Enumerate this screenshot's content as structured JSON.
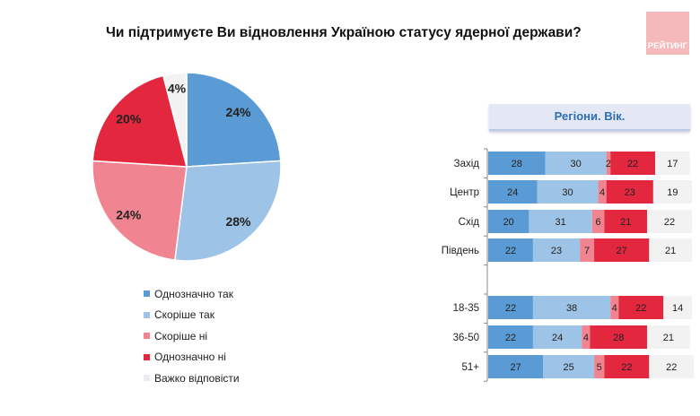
{
  "title": "Чи підтримуєте Ви відновлення Україною статусу ядерної держави?",
  "logo": "РЕЙТИНГ",
  "panel_title": "Регіони. Вік.",
  "chart_data": [
    {
      "type": "pie",
      "categories": [
        "Однозначно так",
        "Скоріше так",
        "Скоріше ні",
        "Однозначно ні",
        "Важко відповісти"
      ],
      "values": [
        24,
        28,
        24,
        20,
        4
      ],
      "labels": [
        "24%",
        "28%",
        "24%",
        "20%",
        "4%"
      ],
      "colors": [
        "#5b9bd5",
        "#9dc3e6",
        "#f08591",
        "#e2273f",
        "#f2f2f2"
      ],
      "legend": "bottom"
    },
    {
      "type": "bar",
      "orientation": "horizontal-stacked",
      "categories": [
        "Захід",
        "Центр",
        "Схід",
        "Південь",
        "",
        "18-35",
        "36-50",
        "51+"
      ],
      "series": [
        {
          "name": "Однозначно так",
          "values": [
            28,
            24,
            20,
            22,
            null,
            22,
            22,
            27
          ]
        },
        {
          "name": "Скоріше так",
          "values": [
            30,
            30,
            31,
            23,
            null,
            38,
            24,
            25
          ]
        },
        {
          "name": "Важко відповісти",
          "values": [
            2,
            4,
            6,
            7,
            null,
            4,
            4,
            5
          ]
        },
        {
          "name": "Скоріше ні",
          "values": [
            22,
            23,
            21,
            27,
            null,
            22,
            28,
            22
          ]
        },
        {
          "name": "Однозначно ні",
          "values": [
            17,
            19,
            22,
            21,
            null,
            14,
            21,
            22
          ]
        }
      ]
    }
  ]
}
